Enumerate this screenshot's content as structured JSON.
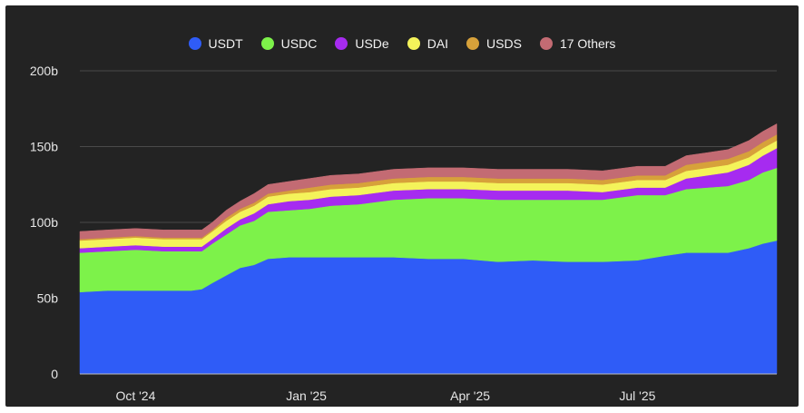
{
  "chart_data": {
    "type": "area",
    "stacked": true,
    "title": "",
    "xlabel": "",
    "ylabel": "",
    "ylim": [
      0,
      200
    ],
    "y_ticks": [
      "0",
      "50b",
      "100b",
      "150b",
      "200b"
    ],
    "y_tick_values": [
      0,
      50,
      100,
      150,
      200
    ],
    "x_ticks": [
      "Oct '24",
      "Jan '25",
      "Apr '25",
      "Jul '25"
    ],
    "x_tick_positions": [
      0.08,
      0.325,
      0.56,
      0.8
    ],
    "grid": true,
    "legend_position": "top-center",
    "x_index": [
      0.0,
      0.04,
      0.08,
      0.12,
      0.16,
      0.175,
      0.19,
      0.21,
      0.23,
      0.25,
      0.27,
      0.3,
      0.33,
      0.36,
      0.4,
      0.45,
      0.5,
      0.55,
      0.6,
      0.65,
      0.7,
      0.75,
      0.8,
      0.84,
      0.87,
      0.9,
      0.93,
      0.96,
      0.98,
      1.0
    ],
    "series": [
      {
        "name": "USDT",
        "color": "#2f5cf7",
        "values": [
          54,
          55,
          55,
          55,
          55,
          56,
          60,
          65,
          70,
          72,
          76,
          77,
          77,
          77,
          77,
          77,
          76,
          76,
          74,
          75,
          74,
          74,
          75,
          78,
          80,
          80,
          80,
          83,
          86,
          88
        ]
      },
      {
        "name": "USDC",
        "color": "#7df24a",
        "values": [
          26,
          26,
          27,
          26,
          26,
          25,
          26,
          27,
          28,
          29,
          31,
          31,
          32,
          34,
          35,
          38,
          40,
          40,
          41,
          40,
          41,
          41,
          43,
          40,
          42,
          43,
          44,
          45,
          47,
          48
        ]
      },
      {
        "name": "USDe",
        "color": "#a62bf0",
        "values": [
          3,
          3,
          3,
          3,
          3,
          3,
          3,
          4,
          4,
          5,
          5,
          6,
          6,
          6,
          6,
          6,
          6,
          6,
          6,
          6,
          6,
          5,
          5,
          5,
          7,
          8,
          9,
          10,
          11,
          13
        ]
      },
      {
        "name": "DAI",
        "color": "#f4f35a",
        "values": [
          5,
          5,
          5,
          5,
          5,
          5,
          5,
          5,
          5,
          5,
          5,
          5,
          5,
          5,
          5,
          5,
          5,
          5,
          5,
          5,
          5,
          5,
          5,
          5,
          5,
          5,
          5,
          5,
          5,
          5
        ]
      },
      {
        "name": "USDS",
        "color": "#d7a13a",
        "values": [
          1,
          1,
          1,
          1,
          1,
          1,
          1,
          2,
          2,
          2,
          2,
          2,
          3,
          3,
          3,
          3,
          3,
          3,
          3,
          3,
          3,
          3,
          3,
          3,
          4,
          4,
          4,
          4,
          4,
          4
        ]
      },
      {
        "name": "17 Others",
        "color": "#c36b73",
        "values": [
          5,
          5,
          5,
          5,
          5,
          5,
          5,
          5,
          5,
          6,
          6,
          6,
          6,
          6,
          6,
          6,
          6,
          6,
          6,
          6,
          6,
          6,
          6,
          6,
          6,
          6,
          6,
          7,
          7,
          7
        ]
      }
    ]
  }
}
